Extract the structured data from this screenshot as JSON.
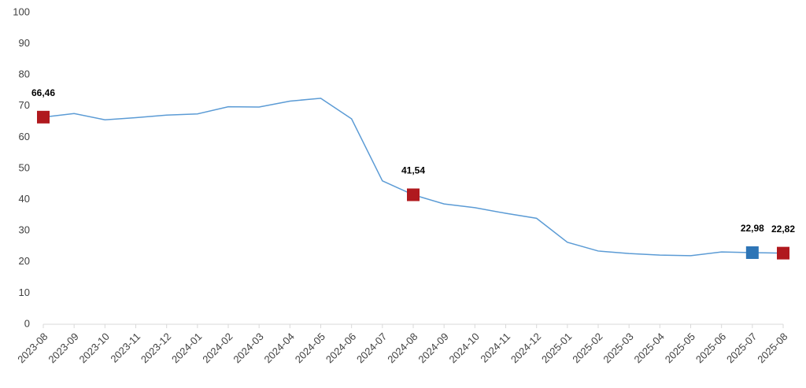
{
  "chart_data": {
    "type": "line",
    "x": [
      "2023-08",
      "2023-09",
      "2023-10",
      "2023-11",
      "2023-12",
      "2024-01",
      "2024-02",
      "2024-03",
      "2024-04",
      "2024-05",
      "2024-06",
      "2024-07",
      "2024-08",
      "2024-09",
      "2024-10",
      "2024-11",
      "2024-12",
      "2025-01",
      "2025-02",
      "2025-03",
      "2025-04",
      "2025-05",
      "2025-06",
      "2025-07",
      "2025-08"
    ],
    "series": [
      {
        "color": "#5b9bd5",
        "values": [
          66.46,
          67.6,
          65.6,
          66.3,
          67.1,
          67.5,
          69.8,
          69.7,
          71.6,
          72.5,
          65.9,
          46.0,
          41.54,
          38.6,
          37.4,
          35.6,
          34.0,
          26.3,
          23.5,
          22.7,
          22.2,
          22.0,
          23.2,
          22.98,
          22.82
        ],
        "value_labels": [
          "66,46",
          null,
          null,
          null,
          null,
          null,
          null,
          null,
          null,
          null,
          null,
          null,
          "41,54",
          null,
          null,
          null,
          null,
          null,
          null,
          null,
          null,
          null,
          null,
          "22,98",
          "22,82"
        ],
        "marker_colors": [
          "#b0191e",
          null,
          null,
          null,
          null,
          null,
          null,
          null,
          null,
          null,
          null,
          null,
          "#b0191e",
          null,
          null,
          null,
          null,
          null,
          null,
          null,
          null,
          null,
          null,
          "#2e75b6",
          "#b0191e"
        ]
      }
    ],
    "ylim": [
      0,
      100
    ],
    "yticks": [
      0,
      10,
      20,
      30,
      40,
      50,
      60,
      70,
      80,
      90,
      100
    ],
    "grid": false
  }
}
